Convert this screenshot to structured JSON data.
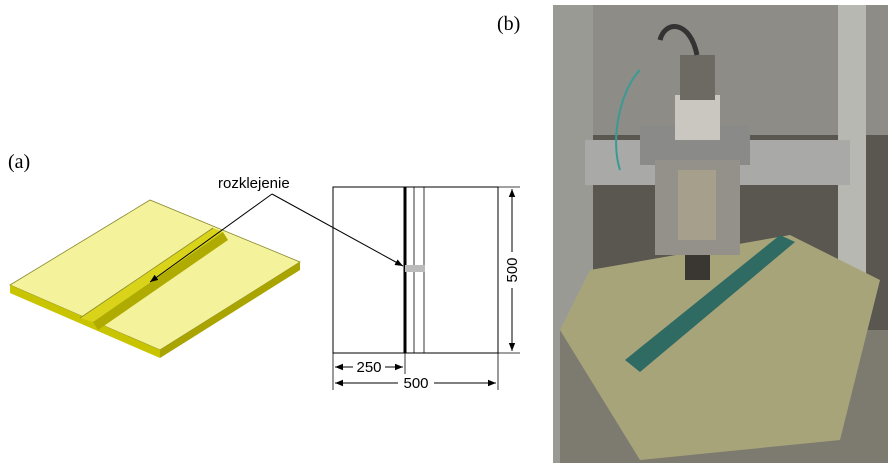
{
  "panels": [
    {
      "label": "(a)"
    },
    {
      "label": "(b)"
    }
  ],
  "annotation": "rozklejenie",
  "dimensions": {
    "offset": "250",
    "width": "500",
    "height": "500"
  }
}
